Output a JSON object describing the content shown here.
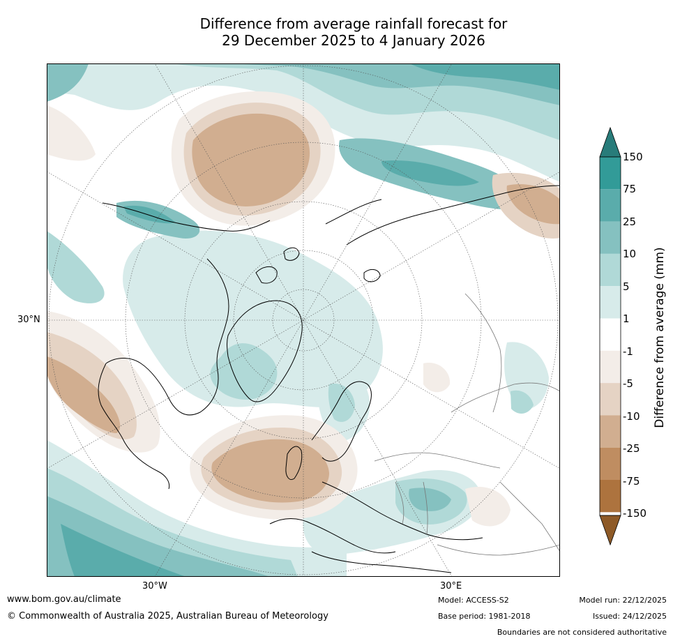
{
  "title": {
    "line1": "Difference from average rainfall forecast for",
    "line2": "29 December 2025 to 4 January 2026"
  },
  "map": {
    "projection": "north-polar-stereographic",
    "latitude_label": "30°N",
    "longitude_labels": {
      "west": "30°W",
      "east": "30°E"
    }
  },
  "colorbar": {
    "title": "Difference from average (mm)",
    "levels": [
      "150",
      "75",
      "25",
      "10",
      "5",
      "1",
      "-1",
      "-5",
      "-10",
      "-25",
      "-75",
      "-150"
    ],
    "colors": {
      "gt150": "#287c7a",
      "75_150": "#329b98",
      "25_75": "#5aacab",
      "10_25": "#85c1c0",
      "5_10": "#b0d9d7",
      "1_5": "#d7ebea",
      "m1_1": "#ffffff",
      "m5_m1": "#f3ede8",
      "m10_m5": "#e5d3c4",
      "m25_m10": "#d1ae90",
      "m75_m25": "#bf8d61",
      "m150_m75": "#ad733e",
      "lt_m150": "#8e5a27"
    }
  },
  "footer": {
    "url": "www.bom.gov.au/climate",
    "copyright": "© Commonwealth of Australia 2025, Australian Bureau of Meteorology",
    "model": "Model: ACCESS-S2",
    "base_period": "Base period: 1981-2018",
    "model_run": "Model run: 22/12/2025",
    "issued": "Issued: 24/12/2025",
    "disclaimer": "Boundaries are not considered authoritative"
  }
}
